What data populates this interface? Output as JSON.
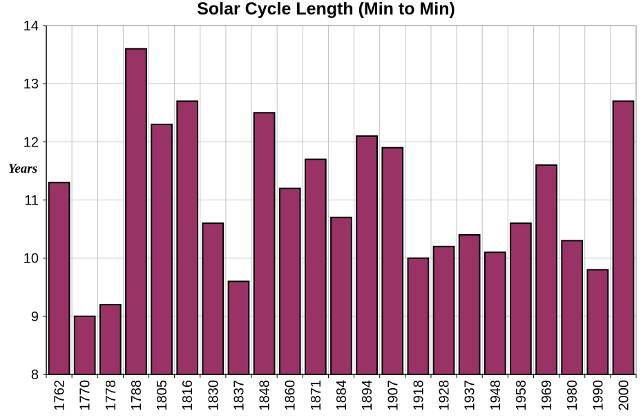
{
  "chart_data": {
    "type": "bar",
    "title": "Solar Cycle Length (Min to Min)",
    "xlabel": "",
    "ylabel": "Years",
    "ylim": [
      8,
      14
    ],
    "yticks": [
      8,
      9,
      10,
      11,
      12,
      13,
      14
    ],
    "grid": true,
    "categories": [
      "1762",
      "1770",
      "1778",
      "1788",
      "1805",
      "1816",
      "1830",
      "1837",
      "1848",
      "1860",
      "1871",
      "1884",
      "1894",
      "1907",
      "1918",
      "1928",
      "1937",
      "1948",
      "1958",
      "1969",
      "1980",
      "1990",
      "2000"
    ],
    "values": [
      11.3,
      9.0,
      9.2,
      13.6,
      12.3,
      12.7,
      10.6,
      9.6,
      12.5,
      11.2,
      11.7,
      10.7,
      12.1,
      11.9,
      10.0,
      10.2,
      10.4,
      10.1,
      10.6,
      11.6,
      10.3,
      9.8,
      12.7
    ],
    "colors": {
      "bar": "#993366",
      "bar_outline": "#000000",
      "grid": "#c0c0c0",
      "plot_border": "#808080"
    }
  }
}
